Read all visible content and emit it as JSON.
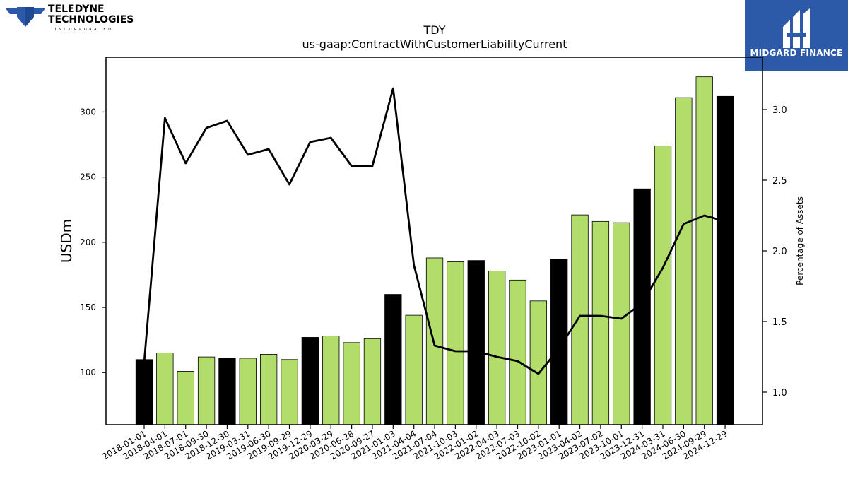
{
  "branding": {
    "left_logo_line1": "TELEDYNE",
    "left_logo_line2": "TECHNOLOGIES",
    "left_logo_line3": "INCORPORATED",
    "right_logo_name": "MIDGARD FINANCE",
    "right_logo_bg": "#2c5aa8"
  },
  "chart_data": {
    "type": "bar",
    "title": "TDY",
    "subtitle": "us-gaap:ContractWithCustomerLiabilityCurrent",
    "ylabel": "USDm",
    "ylabel_right": "Percentage of Assets",
    "ylim": [
      60,
      342
    ],
    "ylim_right": [
      0.77,
      3.37
    ],
    "yticks": [
      100,
      150,
      200,
      250,
      300
    ],
    "yticks_right": [
      1.0,
      1.5,
      2.0,
      2.5,
      3.0
    ],
    "yticks_right_labels": [
      "1.0",
      "1.5",
      "2.0",
      "2.5",
      "3.0"
    ],
    "categories": [
      "2018-01-01",
      "2018-04-01",
      "2018-07-01",
      "2018-09-30",
      "2018-12-30",
      "2019-03-31",
      "2019-06-30",
      "2019-09-29",
      "2019-12-29",
      "2020-03-29",
      "2020-06-28",
      "2020-09-27",
      "2021-01-03",
      "2021-04-04",
      "2021-07-04",
      "2021-10-03",
      "2022-01-02",
      "2022-04-03",
      "2022-07-03",
      "2022-10-02",
      "2023-01-01",
      "2023-04-02",
      "2023-07-02",
      "2023-10-01",
      "2023-12-31",
      "2024-03-31",
      "2024-06-30",
      "2024-09-29",
      "2024-12-29"
    ],
    "series": [
      {
        "kind": "bar",
        "values": [
          110,
          115,
          101,
          112,
          111,
          111,
          114,
          110,
          127,
          128,
          123,
          126,
          160,
          144,
          188,
          185,
          186,
          178,
          171,
          155,
          187,
          221,
          216,
          215,
          241,
          274,
          311,
          327,
          312
        ],
        "highlight": [
          true,
          false,
          false,
          false,
          true,
          false,
          false,
          false,
          true,
          false,
          false,
          false,
          true,
          false,
          false,
          false,
          true,
          false,
          false,
          false,
          true,
          false,
          false,
          false,
          true,
          false,
          false,
          false,
          true
        ],
        "color": "#b2dd6b",
        "highlight_color": "#000000"
      },
      {
        "kind": "line",
        "axis": "right",
        "values": [
          1.21,
          2.94,
          2.62,
          2.87,
          2.92,
          2.68,
          2.72,
          2.47,
          2.77,
          2.8,
          2.6,
          2.6,
          3.15,
          1.9,
          1.33,
          1.29,
          1.29,
          1.25,
          1.22,
          1.13,
          1.31,
          1.54,
          1.54,
          1.52,
          1.63,
          1.88,
          2.19,
          2.25,
          2.21
        ],
        "color": "#000000"
      }
    ]
  }
}
